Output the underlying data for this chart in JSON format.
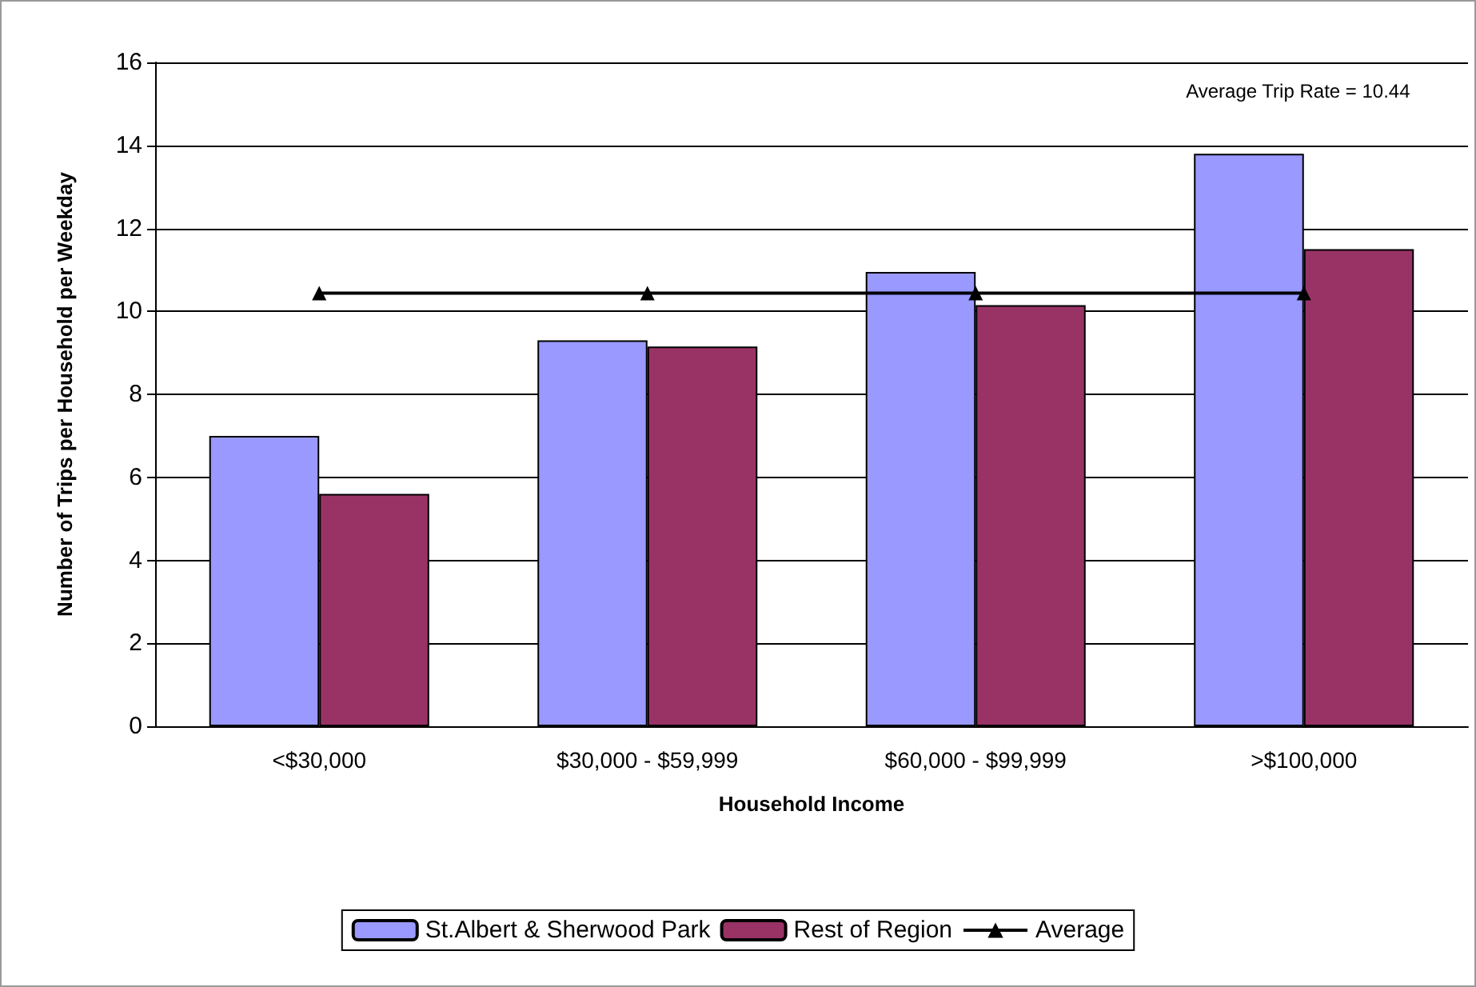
{
  "chart_data": {
    "type": "bar",
    "xlabel": "Household Income",
    "ylabel": "Number of Trips per Household per Weekday",
    "categories": [
      "<$30,000",
      "$30,000 - $59,999",
      "$60,000 - $99,999",
      ">$100,000"
    ],
    "series": [
      {
        "name": "St.Albert & Sherwood Park",
        "color": "#9999ff",
        "values": [
          7.0,
          9.3,
          10.95,
          13.8
        ]
      },
      {
        "name": "Rest of Region",
        "color": "#993366",
        "values": [
          5.6,
          9.15,
          10.15,
          11.5
        ]
      },
      {
        "name": "Average",
        "type": "line",
        "color": "#000000",
        "marker": "triangle",
        "values": [
          10.44,
          10.44,
          10.44,
          10.44
        ]
      }
    ],
    "annotations": [
      "Average Trip Rate = 10.44"
    ],
    "ylim": [
      0,
      16
    ],
    "yticks": [
      0,
      2,
      4,
      6,
      8,
      10,
      12,
      14,
      16
    ],
    "grid": "y",
    "legend": "bottom"
  }
}
